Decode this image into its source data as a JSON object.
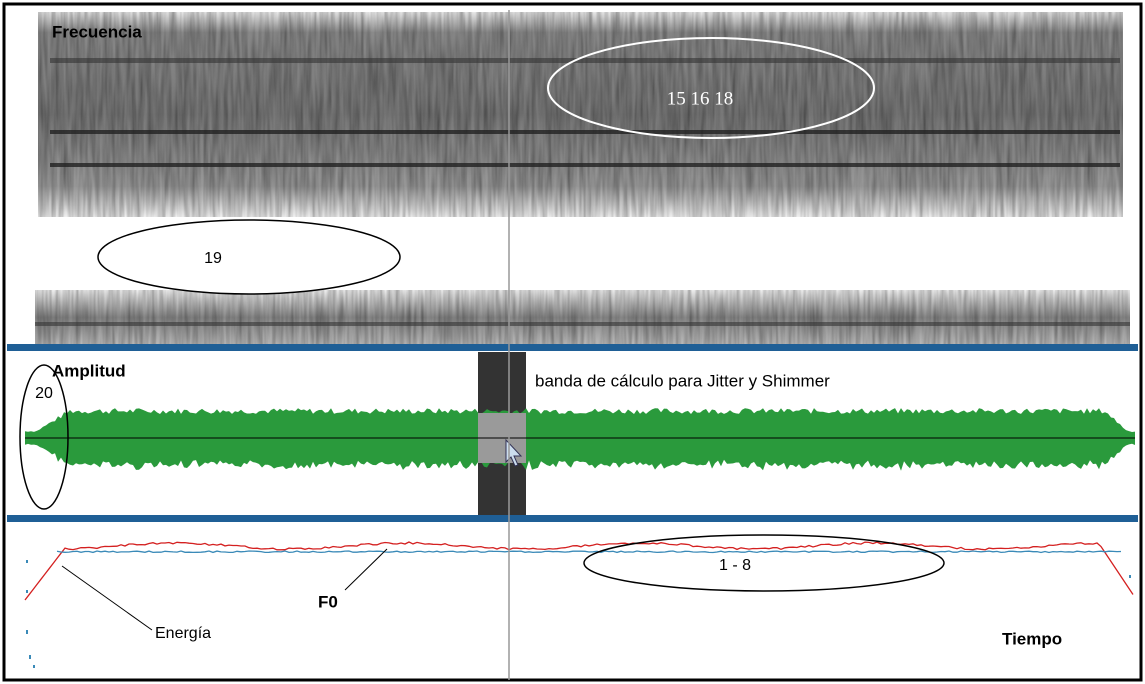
{
  "spectrogram": {
    "label": "Frecuencia",
    "annotations": [
      "15  16  18",
      "19"
    ]
  },
  "amplitude": {
    "label": "Amplitud",
    "annotation": "20",
    "band_caption": "banda de cálculo para Jitter y Shimmer"
  },
  "contour": {
    "f0_label": "F0",
    "energy_label": "Energía",
    "annotation": "1 - 8",
    "time_label": "Tiempo"
  }
}
